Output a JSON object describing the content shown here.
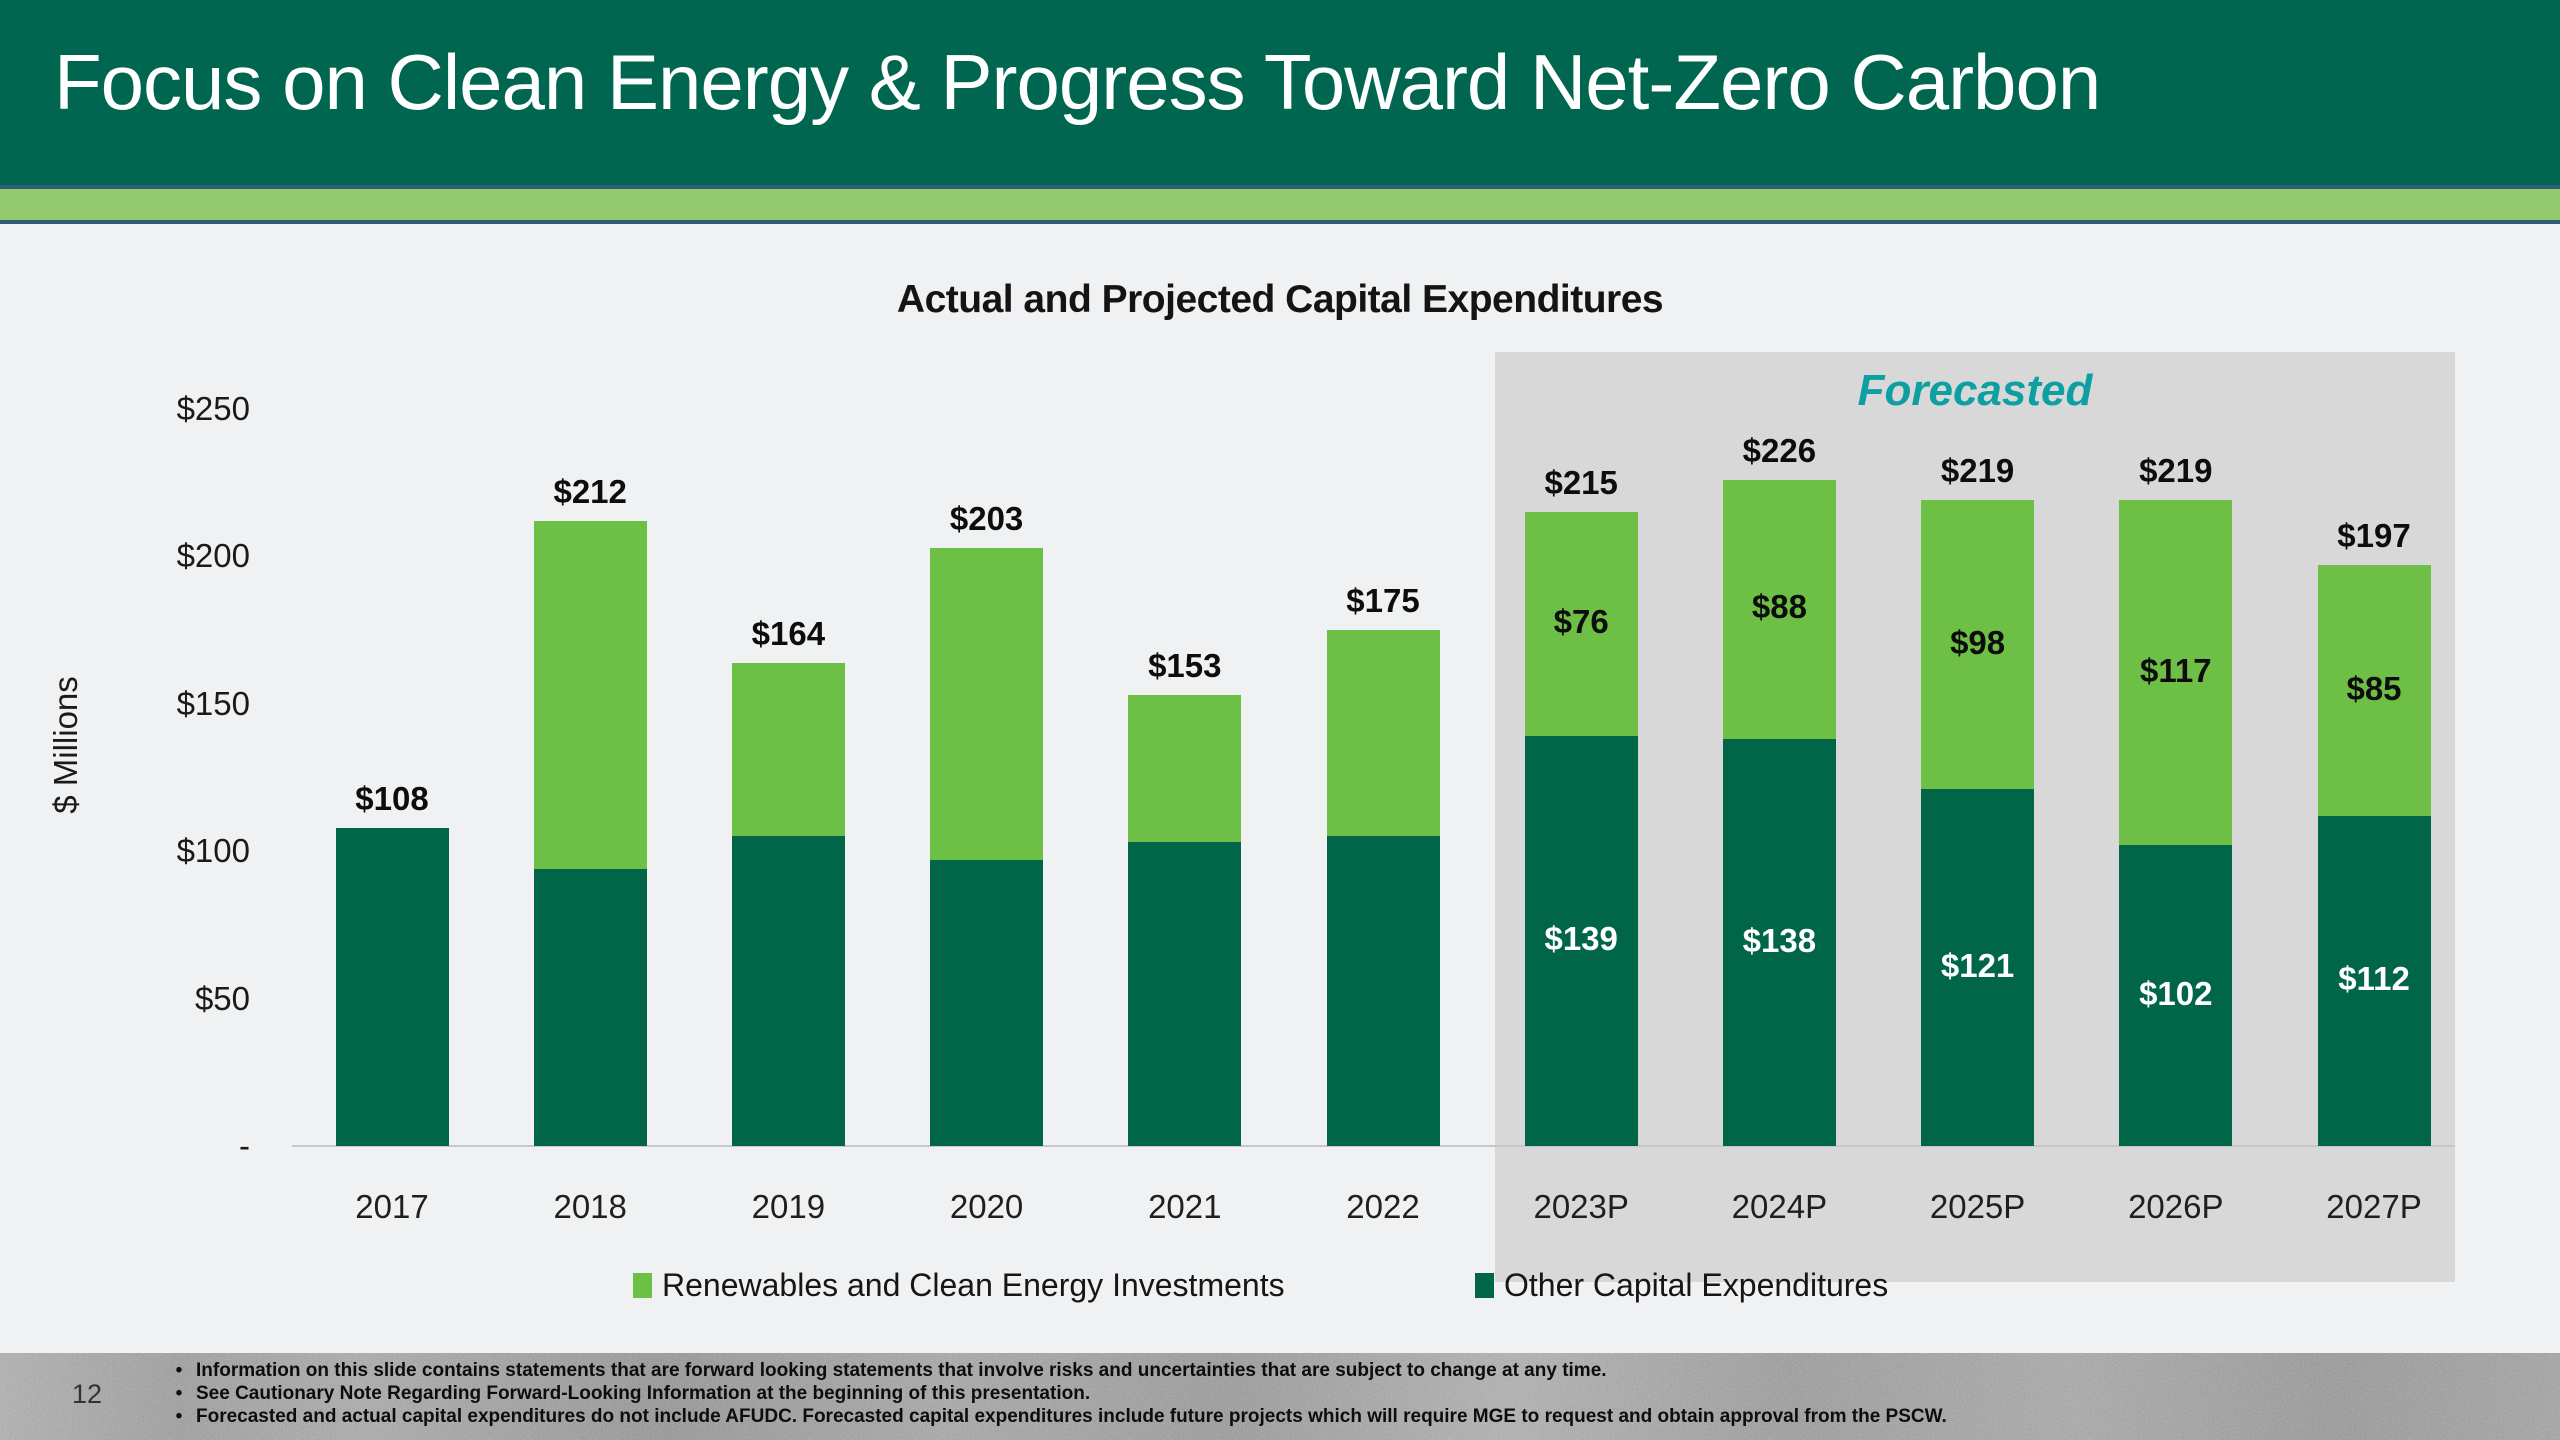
{
  "header": {
    "title": "Focus on Clean Energy & Progress Toward Net-Zero Carbon"
  },
  "chart_data": {
    "type": "bar",
    "stacked": true,
    "title": "Actual and Projected Capital Expenditures",
    "ylabel": "$ Millions",
    "forecast_label": "Forecasted",
    "forecast_start_index": 6,
    "categories": [
      "2017",
      "2018",
      "2019",
      "2020",
      "2021",
      "2022",
      "2023P",
      "2024P",
      "2025P",
      "2026P",
      "2027P"
    ],
    "series": [
      {
        "name": "Other Capital Expenditures",
        "color": "#006647",
        "values": [
          108,
          94,
          105,
          97,
          103,
          105,
          139,
          138,
          121,
          102,
          112
        ],
        "segment_labels": [
          "",
          "",
          "",
          "",
          "",
          "",
          "$139",
          "$138",
          "$121",
          "$102",
          "$112"
        ]
      },
      {
        "name": "Renewables and Clean Energy Investments",
        "color": "#6ebf45",
        "values": [
          0,
          118,
          59,
          106,
          50,
          70,
          76,
          88,
          98,
          117,
          85
        ],
        "segment_labels": [
          "",
          "",
          "",
          "",
          "",
          "",
          "$76",
          "$88",
          "$98",
          "$117",
          "$85"
        ]
      }
    ],
    "totals": [
      "$108",
      "$212",
      "$164",
      "$203",
      "$153",
      "$175",
      "$215",
      "$226",
      "$219",
      "$219",
      "$197"
    ],
    "y_ticks": [
      {
        "label": "$250",
        "value": 250
      },
      {
        "label": "$200",
        "value": 200
      },
      {
        "label": "$150",
        "value": 150
      },
      {
        "label": "$100",
        "value": 100
      },
      {
        "label": "$50",
        "value": 50
      },
      {
        "label": "-",
        "value": 0
      }
    ],
    "ylim": [
      0,
      250
    ],
    "grid": false,
    "legend_position": "bottom"
  },
  "colors": {
    "header_green": "#006650",
    "stripe_green": "#94cb70",
    "stripe_line": "#2e5d73",
    "dark_green": "#006647",
    "light_green": "#6ebf45",
    "teal": "#0d9fa2",
    "panel_gray": "#d8d8d8",
    "background": "#f0f1f2",
    "axis_line": "#c5c7c9"
  },
  "footer": {
    "page_number": "12",
    "bullets": [
      "Information on this slide contains statements that are forward looking statements that involve risks and uncertainties that are subject to change at any time.",
      "See Cautionary Note Regarding Forward-Looking Information at the beginning of this presentation.",
      "Forecasted and actual capital expenditures do not include AFUDC. Forecasted capital expenditures include future projects which will require MGE to request and obtain approval from the PSCW."
    ]
  }
}
